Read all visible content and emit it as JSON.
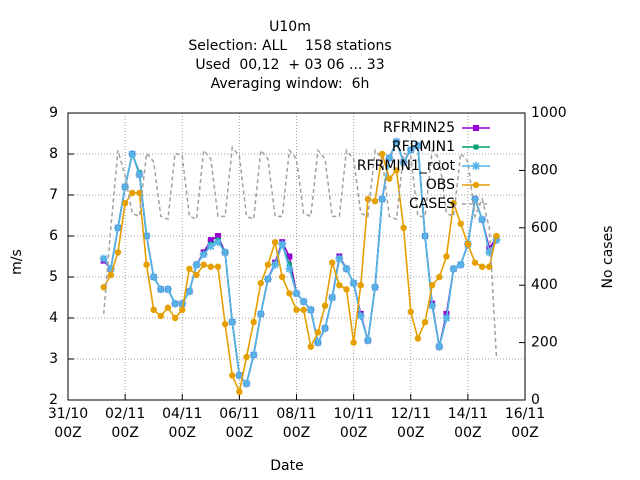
{
  "chart_data": {
    "type": "line",
    "title": [
      "U10m",
      "Selection: ALL    158 stations",
      "Used  00,12  + 03 06 ... 33",
      "Averaging window:  6h"
    ],
    "xlabel": "Date",
    "ylabel": "m/s",
    "y2label": "No cases",
    "x": [
      30,
      36,
      42,
      48,
      54,
      60,
      66,
      72,
      78,
      84,
      90,
      96,
      102,
      108,
      114,
      120,
      126,
      132,
      138,
      144,
      150,
      156,
      162,
      168,
      174,
      180,
      186,
      192,
      198,
      204,
      210,
      216,
      222,
      228,
      234,
      240,
      246,
      252,
      258,
      264,
      270,
      276,
      282,
      288,
      294,
      300,
      306,
      312,
      318,
      324,
      330,
      336,
      342,
      348,
      354,
      360
    ],
    "xlim": [
      0,
      384
    ],
    "xticks": [
      {
        "value": 0,
        "label": "31/10\n00Z"
      },
      {
        "value": 48,
        "label": "02/11\n00Z"
      },
      {
        "value": 96,
        "label": "04/11\n00Z"
      },
      {
        "value": 144,
        "label": "06/11\n00Z"
      },
      {
        "value": 192,
        "label": "08/11\n00Z"
      },
      {
        "value": 240,
        "label": "10/11\n00Z"
      },
      {
        "value": 288,
        "label": "12/11\n00Z"
      },
      {
        "value": 336,
        "label": "14/11\n00Z"
      },
      {
        "value": 384,
        "label": "16/11\n00Z"
      }
    ],
    "ylim": [
      2,
      9
    ],
    "yticks": [
      2,
      3,
      4,
      5,
      6,
      7,
      8,
      9
    ],
    "y2lim": [
      0,
      1000
    ],
    "y2ticks": [
      0,
      200,
      400,
      600,
      800,
      1000
    ],
    "grid": true,
    "legend": "top-right",
    "series": [
      {
        "name": "RFRMIN25",
        "color": "#9400d3",
        "marker": "square",
        "values": [
          5.4,
          5.2,
          6.2,
          7.2,
          8.0,
          7.5,
          6.0,
          5.0,
          4.7,
          4.7,
          4.35,
          4.35,
          4.65,
          5.3,
          5.6,
          5.9,
          6.0,
          5.6,
          3.9,
          2.6,
          2.4,
          3.1,
          4.1,
          4.95,
          5.35,
          5.85,
          5.5,
          4.6,
          4.4,
          4.2,
          3.4,
          3.75,
          4.5,
          5.5,
          5.2,
          4.85,
          4.1,
          3.45,
          4.75,
          6.9,
          7.9,
          8.3,
          7.8,
          8.1,
          8.2,
          6.0,
          4.35,
          3.3,
          4.1,
          5.2,
          5.3,
          5.8,
          6.9,
          6.4,
          5.7,
          5.95
        ]
      },
      {
        "name": "RFRMIN1",
        "color": "#009e73",
        "marker": "rect",
        "values": [
          5.45,
          5.2,
          6.2,
          7.2,
          8.0,
          7.55,
          6.0,
          5.0,
          4.7,
          4.7,
          4.35,
          4.35,
          4.65,
          5.3,
          5.55,
          5.8,
          5.9,
          5.6,
          3.9,
          2.6,
          2.4,
          3.1,
          4.1,
          4.95,
          5.3,
          5.8,
          5.3,
          4.6,
          4.4,
          4.2,
          3.4,
          3.75,
          4.5,
          5.45,
          5.2,
          4.85,
          4.05,
          3.45,
          4.75,
          6.9,
          7.9,
          8.3,
          7.8,
          8.1,
          8.2,
          6.0,
          4.3,
          3.3,
          4.0,
          5.2,
          5.3,
          5.8,
          6.9,
          6.4,
          5.6,
          5.9
        ]
      },
      {
        "name": "RFRMIN1_root",
        "color": "#56b4e9",
        "marker": "star",
        "values": [
          5.45,
          5.2,
          6.2,
          7.2,
          8.0,
          7.5,
          6.0,
          5.0,
          4.7,
          4.7,
          4.35,
          4.35,
          4.65,
          5.3,
          5.55,
          5.75,
          5.85,
          5.6,
          3.9,
          2.6,
          2.4,
          3.1,
          4.1,
          4.95,
          5.3,
          5.8,
          5.2,
          4.6,
          4.4,
          4.2,
          3.4,
          3.75,
          4.5,
          5.45,
          5.2,
          4.85,
          4.05,
          3.45,
          4.75,
          6.9,
          7.9,
          8.3,
          7.8,
          8.1,
          8.2,
          6.0,
          4.3,
          3.3,
          4.0,
          5.2,
          5.3,
          5.8,
          6.9,
          6.4,
          5.6,
          5.9
        ]
      },
      {
        "name": "OBS",
        "color": "#e69f00",
        "marker": "circle",
        "values": [
          4.75,
          5.05,
          5.6,
          6.8,
          7.05,
          7.05,
          5.3,
          4.2,
          4.05,
          4.25,
          4.0,
          4.2,
          5.2,
          5.05,
          5.3,
          5.25,
          5.25,
          3.85,
          2.6,
          2.2,
          3.05,
          3.9,
          4.85,
          5.3,
          5.85,
          5.0,
          4.6,
          4.2,
          4.2,
          3.3,
          3.65,
          4.3,
          5.35,
          4.8,
          4.7,
          3.4,
          4.8,
          6.9,
          6.85,
          8.0,
          7.4,
          7.6,
          6.2,
          4.15,
          3.5,
          3.9,
          4.8,
          5.0,
          5.5,
          6.8,
          6.3,
          5.8,
          5.35,
          5.25,
          5.25,
          6.0
        ]
      },
      {
        "name": "CASES",
        "color": "#a0a0a0",
        "axis": "y2",
        "dashed": true,
        "values": [
          300,
          600,
          870,
          780,
          650,
          640,
          860,
          830,
          640,
          630,
          860,
          850,
          640,
          630,
          870,
          840,
          640,
          640,
          880,
          850,
          640,
          630,
          870,
          840,
          640,
          640,
          870,
          840,
          650,
          640,
          870,
          840,
          640,
          640,
          870,
          840,
          650,
          640,
          870,
          840,
          640,
          630,
          860,
          850,
          640,
          640,
          870,
          840,
          650,
          640,
          860,
          830,
          640,
          700,
          600,
          150
        ]
      }
    ]
  }
}
